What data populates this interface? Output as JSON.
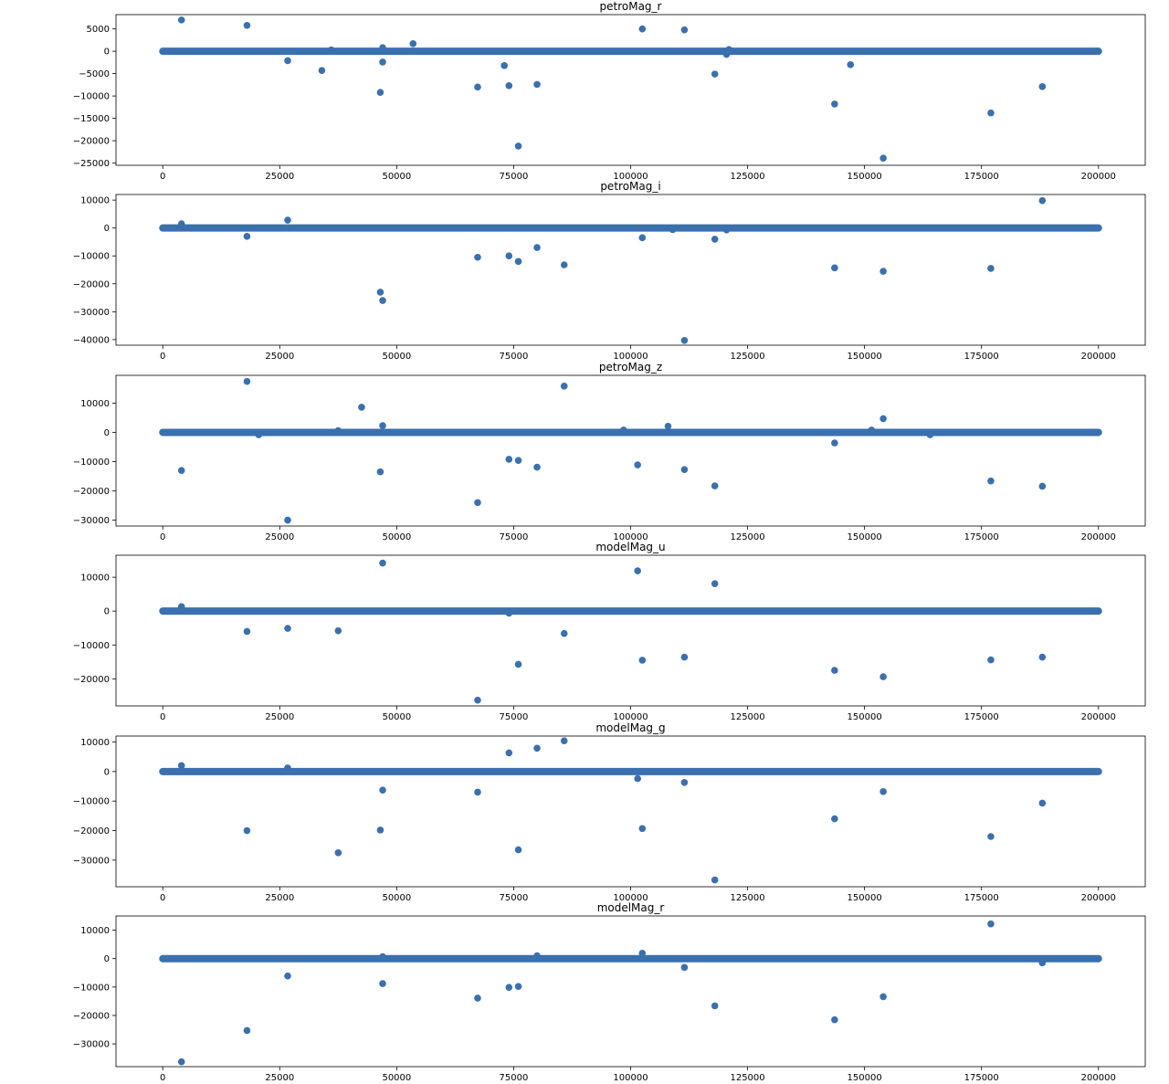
{
  "figure": {
    "point_color": "#3a70ad",
    "axis_color": "#000000",
    "baseline_y": 0
  },
  "chart_data": [
    {
      "type": "scatter",
      "title": "petroMag_r",
      "xlim": [
        -10000,
        210000
      ],
      "ylim": [
        -25500,
        8200
      ],
      "xticks": [
        0,
        25000,
        50000,
        75000,
        100000,
        125000,
        150000,
        175000,
        200000
      ],
      "yticks": [
        5000,
        0,
        -5000,
        -10000,
        -15000,
        -20000,
        -25000
      ],
      "baseline": [
        0,
        200000
      ],
      "points": [
        [
          4000,
          7000
        ],
        [
          18000,
          5800
        ],
        [
          26700,
          -2100
        ],
        [
          34000,
          -4300
        ],
        [
          36000,
          300
        ],
        [
          46500,
          -9200
        ],
        [
          47000,
          -2400
        ],
        [
          47000,
          800
        ],
        [
          53500,
          1700
        ],
        [
          67300,
          -8000
        ],
        [
          73000,
          -3200
        ],
        [
          74000,
          -7700
        ],
        [
          76000,
          -21200
        ],
        [
          80000,
          -7400
        ],
        [
          102500,
          5000
        ],
        [
          111500,
          4800
        ],
        [
          118000,
          -5100
        ],
        [
          120500,
          -700
        ],
        [
          121000,
          400
        ],
        [
          143600,
          -11800
        ],
        [
          147000,
          -3000
        ],
        [
          154000,
          -23900
        ],
        [
          177000,
          -13800
        ],
        [
          188000,
          -7900
        ]
      ]
    },
    {
      "type": "scatter",
      "title": "petroMag_i",
      "xlim": [
        -10000,
        210000
      ],
      "ylim": [
        -42000,
        12000
      ],
      "xticks": [
        0,
        25000,
        50000,
        75000,
        100000,
        125000,
        150000,
        175000,
        200000
      ],
      "yticks": [
        10000,
        0,
        -10000,
        -20000,
        -30000,
        -40000
      ],
      "baseline": [
        0,
        200000
      ],
      "points": [
        [
          4000,
          1500
        ],
        [
          18000,
          -3000
        ],
        [
          26700,
          2800
        ],
        [
          46500,
          -23000
        ],
        [
          47000,
          -26000
        ],
        [
          67300,
          -10500
        ],
        [
          74000,
          -10000
        ],
        [
          76000,
          -12000
        ],
        [
          80000,
          -7000
        ],
        [
          85800,
          -13200
        ],
        [
          102500,
          -3500
        ],
        [
          109000,
          -600
        ],
        [
          111500,
          -40300
        ],
        [
          118000,
          -4000
        ],
        [
          120500,
          -700
        ],
        [
          143600,
          -14300
        ],
        [
          154000,
          -15500
        ],
        [
          177000,
          -14500
        ],
        [
          188000,
          9800
        ]
      ]
    },
    {
      "type": "scatter",
      "title": "petroMag_z",
      "xlim": [
        -10000,
        210000
      ],
      "ylim": [
        -32000,
        19500
      ],
      "xticks": [
        0,
        25000,
        50000,
        75000,
        100000,
        125000,
        150000,
        175000,
        200000
      ],
      "yticks": [
        10000,
        0,
        -10000,
        -20000,
        -30000
      ],
      "baseline": [
        0,
        200000
      ],
      "points": [
        [
          4000,
          -13000
        ],
        [
          18000,
          17400
        ],
        [
          20500,
          -800
        ],
        [
          26700,
          -30000
        ],
        [
          37500,
          600
        ],
        [
          42500,
          8600
        ],
        [
          46500,
          -13500
        ],
        [
          47000,
          2300
        ],
        [
          67300,
          -24000
        ],
        [
          74000,
          -9200
        ],
        [
          76000,
          -9600
        ],
        [
          80000,
          -11900
        ],
        [
          85800,
          15800
        ],
        [
          98500,
          800
        ],
        [
          101500,
          -11100
        ],
        [
          108000,
          2100
        ],
        [
          111500,
          -12700
        ],
        [
          118000,
          -18300
        ],
        [
          143600,
          -3600
        ],
        [
          151500,
          800
        ],
        [
          154000,
          4700
        ],
        [
          164000,
          -800
        ],
        [
          177000,
          -16600
        ],
        [
          188000,
          -18400
        ]
      ]
    },
    {
      "type": "scatter",
      "title": "modelMag_u",
      "xlim": [
        -10000,
        210000
      ],
      "ylim": [
        -28000,
        16500
      ],
      "xticks": [
        0,
        25000,
        50000,
        75000,
        100000,
        125000,
        150000,
        175000,
        200000
      ],
      "yticks": [
        10000,
        0,
        -10000,
        -20000
      ],
      "baseline": [
        0,
        200000
      ],
      "points": [
        [
          4000,
          1300
        ],
        [
          18000,
          -6000
        ],
        [
          26700,
          -5100
        ],
        [
          37500,
          -5800
        ],
        [
          47000,
          14200
        ],
        [
          67300,
          -26300
        ],
        [
          74000,
          -600
        ],
        [
          76000,
          -15700
        ],
        [
          85800,
          -6600
        ],
        [
          101500,
          11900
        ],
        [
          102500,
          -14500
        ],
        [
          111500,
          -13600
        ],
        [
          118000,
          8100
        ],
        [
          143600,
          -17500
        ],
        [
          154000,
          -19400
        ],
        [
          177000,
          -14400
        ],
        [
          188000,
          -13600
        ]
      ]
    },
    {
      "type": "scatter",
      "title": "modelMag_g",
      "xlim": [
        -10000,
        210000
      ],
      "ylim": [
        -39000,
        12000
      ],
      "xticks": [
        0,
        25000,
        50000,
        75000,
        100000,
        125000,
        150000,
        175000,
        200000
      ],
      "yticks": [
        10000,
        0,
        -10000,
        -20000,
        -30000
      ],
      "baseline": [
        0,
        200000
      ],
      "points": [
        [
          4000,
          2000
        ],
        [
          18000,
          -20000
        ],
        [
          26700,
          1200
        ],
        [
          37500,
          -27500
        ],
        [
          46500,
          -19800
        ],
        [
          47000,
          -6300
        ],
        [
          67300,
          -7000
        ],
        [
          74000,
          6300
        ],
        [
          76000,
          -26500
        ],
        [
          80000,
          7900
        ],
        [
          85800,
          10400
        ],
        [
          101500,
          -2400
        ],
        [
          102500,
          -19300
        ],
        [
          111500,
          -3700
        ],
        [
          118000,
          -36700
        ],
        [
          143600,
          -16000
        ],
        [
          154000,
          -6800
        ],
        [
          177000,
          -22000
        ],
        [
          188000,
          -10700
        ]
      ]
    },
    {
      "type": "scatter",
      "title": "modelMag_r",
      "xlim": [
        -10000,
        210000
      ],
      "ylim": [
        -38000,
        15000
      ],
      "xticks": [
        0,
        25000,
        50000,
        75000,
        100000,
        125000,
        150000,
        175000,
        200000
      ],
      "yticks": [
        10000,
        0,
        -10000,
        -20000,
        -30000
      ],
      "baseline": [
        0,
        200000
      ],
      "points": [
        [
          4000,
          -36300
        ],
        [
          18000,
          -25300
        ],
        [
          26700,
          -6100
        ],
        [
          47000,
          -8800
        ],
        [
          47000,
          700
        ],
        [
          67300,
          -13900
        ],
        [
          74000,
          -10100
        ],
        [
          76000,
          -9800
        ],
        [
          80000,
          1000
        ],
        [
          102500,
          1900
        ],
        [
          111500,
          -3100
        ],
        [
          118000,
          -16600
        ],
        [
          143600,
          -21500
        ],
        [
          154000,
          -13400
        ],
        [
          177000,
          12200
        ],
        [
          188000,
          -1500
        ]
      ]
    }
  ]
}
